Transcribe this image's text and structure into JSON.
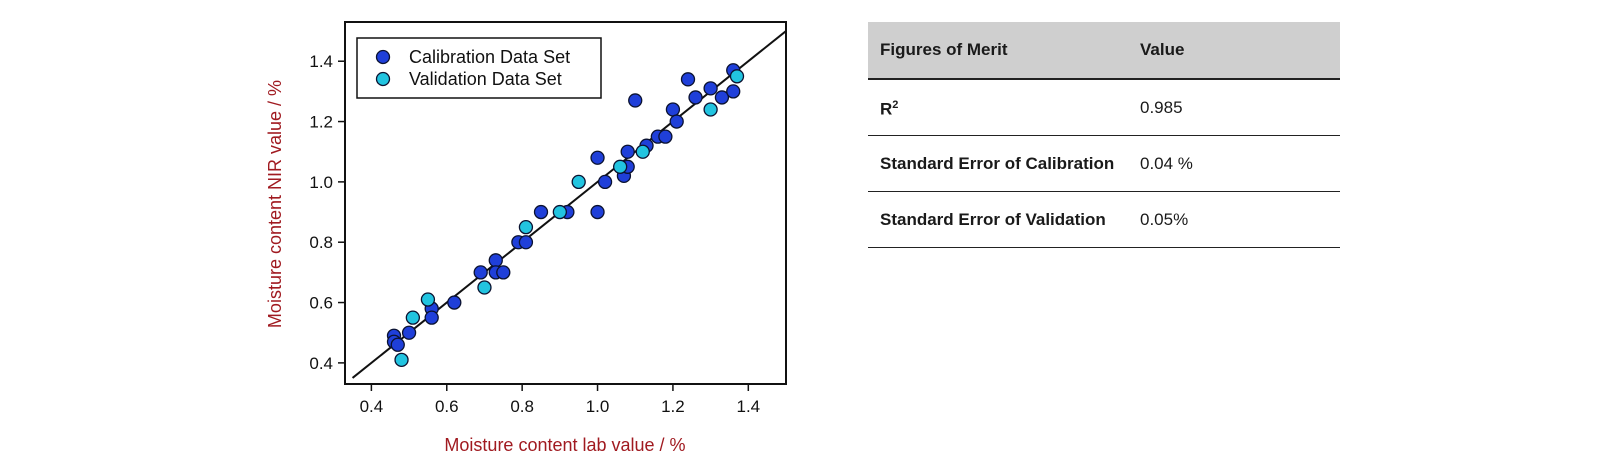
{
  "chart_data": {
    "type": "scatter",
    "xlabel": "Moisture content lab value / %",
    "ylabel": "Moisture content NIR value / %",
    "xlim": [
      0.33,
      1.5
    ],
    "ylim": [
      0.33,
      1.53
    ],
    "xticks": [
      "0.4",
      "0.6",
      "0.8",
      "1.0",
      "1.2",
      "1.4"
    ],
    "yticks": [
      "0.4",
      "0.6",
      "0.8",
      "1.0",
      "1.2",
      "1.4"
    ],
    "legend_position": "top-left",
    "series": [
      {
        "name": "Calibration Data Set",
        "color": "#1f3fd9",
        "points": [
          [
            0.46,
            0.49
          ],
          [
            0.46,
            0.47
          ],
          [
            0.47,
            0.46
          ],
          [
            0.5,
            0.5
          ],
          [
            0.56,
            0.58
          ],
          [
            0.56,
            0.55
          ],
          [
            0.62,
            0.6
          ],
          [
            0.69,
            0.7
          ],
          [
            0.73,
            0.74
          ],
          [
            0.73,
            0.7
          ],
          [
            0.75,
            0.7
          ],
          [
            0.79,
            0.8
          ],
          [
            0.81,
            0.8
          ],
          [
            0.85,
            0.9
          ],
          [
            0.92,
            0.9
          ],
          [
            1.0,
            1.08
          ],
          [
            1.0,
            0.9
          ],
          [
            1.02,
            1.0
          ],
          [
            1.07,
            1.02
          ],
          [
            1.08,
            1.1
          ],
          [
            1.08,
            1.05
          ],
          [
            1.1,
            1.27
          ],
          [
            1.13,
            1.12
          ],
          [
            1.16,
            1.15
          ],
          [
            1.18,
            1.15
          ],
          [
            1.2,
            1.24
          ],
          [
            1.21,
            1.2
          ],
          [
            1.24,
            1.34
          ],
          [
            1.26,
            1.28
          ],
          [
            1.3,
            1.31
          ],
          [
            1.33,
            1.28
          ],
          [
            1.36,
            1.37
          ],
          [
            1.36,
            1.3
          ]
        ]
      },
      {
        "name": "Validation Data Set",
        "color": "#22c4e0",
        "points": [
          [
            0.48,
            0.41
          ],
          [
            0.51,
            0.55
          ],
          [
            0.55,
            0.61
          ],
          [
            0.7,
            0.65
          ],
          [
            0.81,
            0.85
          ],
          [
            0.9,
            0.9
          ],
          [
            0.95,
            1.0
          ],
          [
            1.06,
            1.05
          ],
          [
            1.12,
            1.1
          ],
          [
            1.3,
            1.24
          ],
          [
            1.37,
            1.35
          ]
        ]
      }
    ],
    "fit_line": {
      "from": [
        0.35,
        0.35
      ],
      "to": [
        1.5,
        1.5
      ],
      "color": "#111111"
    }
  },
  "table": {
    "headers": [
      "Figures of Merit",
      "Value"
    ],
    "rows": [
      {
        "metric": "R",
        "metric_sup": "2",
        "value": "0.985"
      },
      {
        "metric": "Standard Error of Calibration",
        "value": "0.04 %"
      },
      {
        "metric": "Standard Error of Validation",
        "value": "0.05%"
      }
    ]
  }
}
